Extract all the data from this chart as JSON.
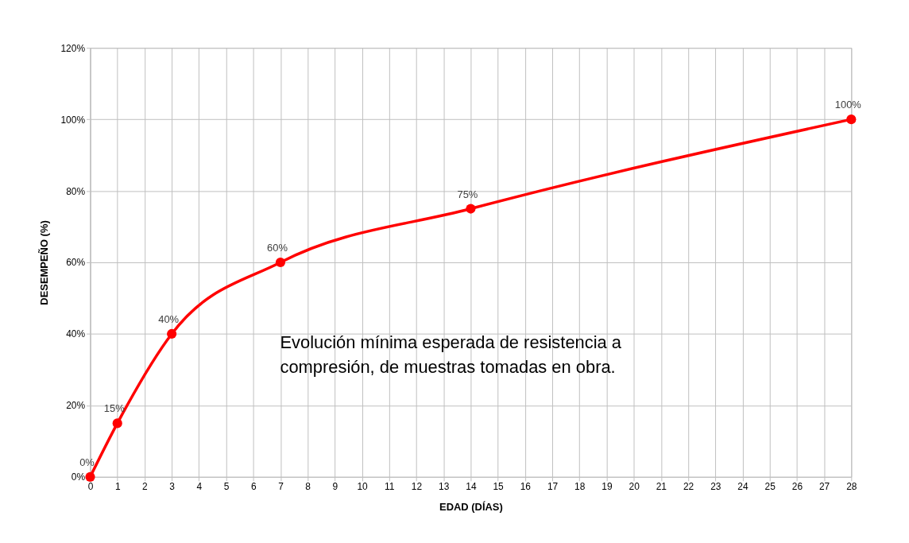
{
  "chart_data": {
    "type": "line",
    "xlabel": "EDAD (DÍAS)",
    "ylabel": "DESEMPEÑO (%)",
    "x": [
      0,
      1,
      3,
      7,
      14,
      28
    ],
    "series": [
      {
        "color": "#ff0000",
        "values": [
          0,
          15,
          40,
          60,
          75,
          100
        ],
        "value_labels": [
          "0%",
          "15%",
          "40%",
          "60%",
          "75%",
          "100%"
        ]
      }
    ],
    "xlim": [
      0,
      28
    ],
    "xticks": [
      0,
      1,
      2,
      3,
      4,
      5,
      6,
      7,
      8,
      9,
      10,
      11,
      12,
      13,
      14,
      15,
      16,
      17,
      18,
      19,
      20,
      21,
      22,
      23,
      24,
      25,
      26,
      27,
      28
    ],
    "ylim": [
      0,
      120
    ],
    "yticks": [
      {
        "value": 0,
        "label": "0%"
      },
      {
        "value": 20,
        "label": "20%"
      },
      {
        "value": 40,
        "label": "40%"
      },
      {
        "value": 60,
        "label": "60%"
      },
      {
        "value": 80,
        "label": "80%"
      },
      {
        "value": 100,
        "label": "100%"
      },
      {
        "value": 120,
        "label": "120%"
      }
    ],
    "annotations": [
      "Evolución mínima esperada de resistencia a compresión, de muestras tomadas en obra."
    ],
    "grid": true,
    "marker": "circle",
    "line_style": "solid"
  }
}
